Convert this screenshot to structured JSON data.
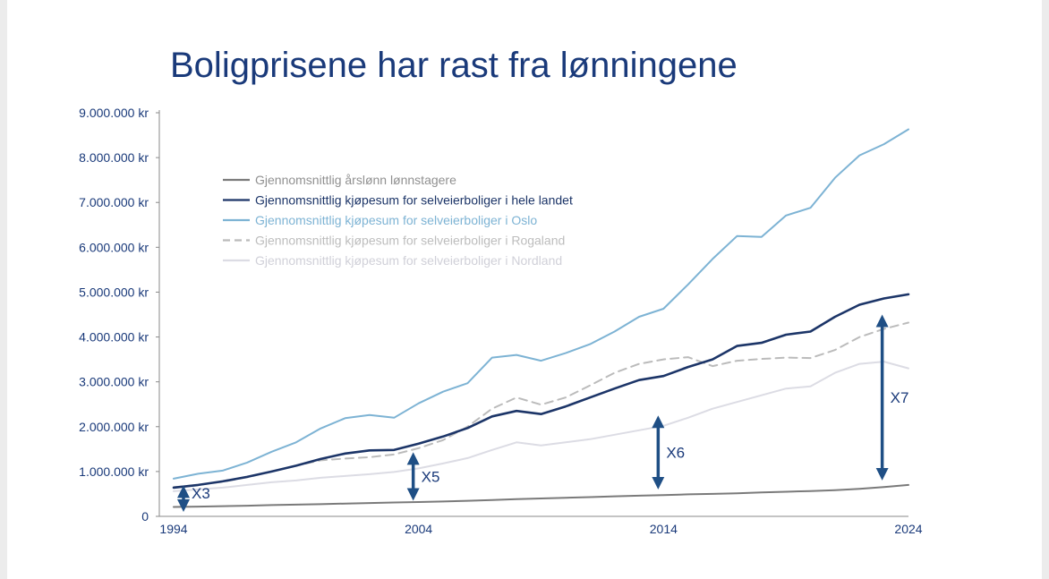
{
  "chart_data": {
    "type": "line",
    "title": "Boligprisene har rast fra lønningene",
    "xlabel": "",
    "ylabel": "",
    "xlim": [
      1994,
      2024
    ],
    "ylim": [
      0,
      9000000
    ],
    "x_ticks": [
      "1994",
      "2004",
      "2014",
      "2024"
    ],
    "y_ticks": [
      "0",
      "1.000.000 kr",
      "2.000.000 kr",
      "3.000.000 kr",
      "4.000.000 kr",
      "5.000.000 kr",
      "6.000.000 kr",
      "7.000.000 kr",
      "8.000.000 kr",
      "9.000.000 kr"
    ],
    "x": [
      1994,
      1995,
      1996,
      1997,
      1998,
      1999,
      2000,
      2001,
      2002,
      2003,
      2004,
      2005,
      2006,
      2007,
      2008,
      2009,
      2010,
      2011,
      2012,
      2013,
      2014,
      2015,
      2016,
      2017,
      2018,
      2019,
      2020,
      2021,
      2022,
      2023,
      2024
    ],
    "grid": false,
    "legend_position": "top-left",
    "series": [
      {
        "name": "Gjennomsnittlig årslønn lønnstagere",
        "color": "#7a7a7a",
        "dash": "solid",
        "values": [
          210000,
          218000,
          228000,
          238000,
          252000,
          262000,
          272000,
          285000,
          298000,
          310000,
          320000,
          332000,
          347000,
          365000,
          385000,
          400000,
          415000,
          430000,
          447000,
          460000,
          475000,
          490000,
          500000,
          515000,
          532000,
          548000,
          565000,
          585000,
          615000,
          655000,
          700000
        ]
      },
      {
        "name": "Gjennomsnittlig kjøpesum for selveierboliger i hele landet",
        "color": "#1c3568",
        "dash": "solid",
        "values": [
          640000,
          700000,
          780000,
          880000,
          1000000,
          1130000,
          1280000,
          1400000,
          1470000,
          1480000,
          1620000,
          1780000,
          1970000,
          2230000,
          2350000,
          2280000,
          2450000,
          2650000,
          2850000,
          3040000,
          3130000,
          3330000,
          3500000,
          3800000,
          3870000,
          4050000,
          4120000,
          4450000,
          4720000,
          4860000,
          4950000
        ]
      },
      {
        "name": "Gjennomsnittlig kjøpesum for selveierboliger i Oslo",
        "color": "#7db3d4",
        "dash": "solid",
        "values": [
          840000,
          950000,
          1020000,
          1200000,
          1440000,
          1650000,
          1960000,
          2190000,
          2260000,
          2200000,
          2520000,
          2780000,
          2970000,
          3540000,
          3600000,
          3470000,
          3640000,
          3840000,
          4120000,
          4450000,
          4630000,
          5170000,
          5740000,
          6250000,
          6230000,
          6710000,
          6880000,
          7550000,
          8050000,
          8300000,
          8630000
        ]
      },
      {
        "name": "Gjennomsnittlig kjøpesum for selveierboliger i Rogaland",
        "color": "#bbbbbb",
        "dash": "dashed",
        "values": [
          650000,
          700000,
          770000,
          870000,
          1000000,
          1130000,
          1250000,
          1290000,
          1320000,
          1380000,
          1520000,
          1700000,
          2000000,
          2400000,
          2650000,
          2490000,
          2650000,
          2920000,
          3200000,
          3400000,
          3500000,
          3550000,
          3350000,
          3470000,
          3510000,
          3540000,
          3530000,
          3710000,
          4000000,
          4180000,
          4320000
        ]
      },
      {
        "name": "Gjennomsnittlig kjøpesum for selveierboliger i Nordland",
        "color": "#dcdce4",
        "dash": "solid",
        "values": [
          560000,
          600000,
          640000,
          700000,
          760000,
          800000,
          860000,
          900000,
          940000,
          990000,
          1070000,
          1180000,
          1300000,
          1480000,
          1650000,
          1580000,
          1650000,
          1720000,
          1820000,
          1920000,
          2020000,
          2200000,
          2400000,
          2550000,
          2700000,
          2850000,
          2900000,
          3200000,
          3400000,
          3450000,
          3300000
        ]
      }
    ],
    "annotations": [
      {
        "label": "X3",
        "x": 1994,
        "from": 200000,
        "to": 590000
      },
      {
        "label": "X5",
        "x": 2004,
        "from": 450000,
        "to": 1330000
      },
      {
        "label": "X6",
        "x": 2014,
        "from": 700000,
        "to": 2150000
      },
      {
        "label": "X7",
        "x": 2023,
        "from": 900000,
        "to": 4400000
      }
    ]
  }
}
